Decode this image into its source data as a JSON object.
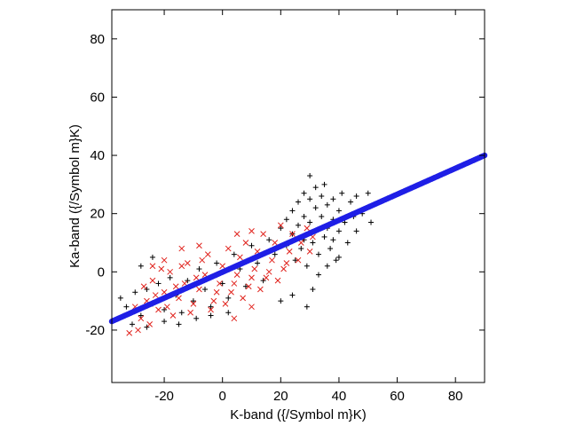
{
  "chart_data": {
    "type": "scatter",
    "xlabel": "K-band ({/Symbol m}K)",
    "ylabel": "Ka-band ({/Symbol m}K)",
    "xlim": [
      -38,
      90
    ],
    "ylim": [
      -38,
      90
    ],
    "xticks": [
      -20,
      0,
      20,
      40,
      60,
      80
    ],
    "yticks": [
      -20,
      0,
      20,
      40,
      60,
      80
    ],
    "xtick_labels": [
      "-20",
      "0",
      "20",
      "40",
      "60",
      "80"
    ],
    "ytick_labels": [
      "-20",
      "0",
      "20",
      "40",
      "60",
      "80"
    ],
    "grid": false,
    "legend": "none",
    "series": [
      {
        "marker": "plus",
        "color": "#000000",
        "points": [
          [
            -35,
            -9
          ],
          [
            -33,
            -12
          ],
          [
            -30,
            -7
          ],
          [
            -28,
            -15
          ],
          [
            -26,
            -6
          ],
          [
            -24,
            -11
          ],
          [
            -22,
            -4
          ],
          [
            -20,
            -13
          ],
          [
            -18,
            -2
          ],
          [
            -16,
            -8
          ],
          [
            -14,
            -14
          ],
          [
            -12,
            -3
          ],
          [
            -10,
            -10
          ],
          [
            -8,
            1
          ],
          [
            -6,
            -6
          ],
          [
            -4,
            -12
          ],
          [
            -2,
            3
          ],
          [
            0,
            -4
          ],
          [
            2,
            -9
          ],
          [
            4,
            6
          ],
          [
            6,
            1
          ],
          [
            8,
            -5
          ],
          [
            10,
            9
          ],
          [
            12,
            3
          ],
          [
            14,
            -3
          ],
          [
            16,
            11
          ],
          [
            18,
            6
          ],
          [
            20,
            15
          ],
          [
            22,
            18
          ],
          [
            22,
            9
          ],
          [
            24,
            21
          ],
          [
            24,
            13
          ],
          [
            25,
            4
          ],
          [
            26,
            24
          ],
          [
            26,
            16
          ],
          [
            27,
            8
          ],
          [
            28,
            27
          ],
          [
            28,
            19
          ],
          [
            28,
            11
          ],
          [
            29,
            2
          ],
          [
            30,
            33
          ],
          [
            30,
            25
          ],
          [
            30,
            17
          ],
          [
            31,
            10
          ],
          [
            32,
            29
          ],
          [
            32,
            22
          ],
          [
            32,
            14
          ],
          [
            33,
            6
          ],
          [
            34,
            26
          ],
          [
            34,
            19
          ],
          [
            35,
            12
          ],
          [
            35,
            30
          ],
          [
            36,
            23
          ],
          [
            36,
            15
          ],
          [
            37,
            8
          ],
          [
            38,
            25
          ],
          [
            38,
            18
          ],
          [
            38,
            11
          ],
          [
            39,
            4
          ],
          [
            40,
            21
          ],
          [
            40,
            14
          ],
          [
            41,
            27
          ],
          [
            42,
            17
          ],
          [
            43,
            10
          ],
          [
            44,
            24
          ],
          [
            45,
            19
          ],
          [
            46,
            26
          ],
          [
            46,
            14
          ],
          [
            48,
            20
          ],
          [
            50,
            27
          ],
          [
            51,
            17
          ],
          [
            29,
            -12
          ],
          [
            31,
            -6
          ],
          [
            33,
            -1
          ],
          [
            36,
            2
          ],
          [
            40,
            5
          ],
          [
            24,
            -8
          ],
          [
            20,
            -10
          ],
          [
            -28,
            2
          ],
          [
            -24,
            5
          ],
          [
            -31,
            -18
          ],
          [
            -26,
            -19
          ],
          [
            -20,
            -17
          ],
          [
            -15,
            -18
          ],
          [
            -9,
            -16
          ],
          [
            -4,
            -15
          ],
          [
            2,
            -14
          ]
        ]
      },
      {
        "marker": "cross",
        "color": "#e0201a",
        "points": [
          [
            -32,
            -21
          ],
          [
            -28,
            -16
          ],
          [
            -26,
            -10
          ],
          [
            -24,
            -3
          ],
          [
            -22,
            -13
          ],
          [
            -20,
            -7
          ],
          [
            -18,
            0
          ],
          [
            -17,
            -15
          ],
          [
            -15,
            -9
          ],
          [
            -13,
            -4
          ],
          [
            -12,
            3
          ],
          [
            -10,
            -11
          ],
          [
            -8,
            -6
          ],
          [
            -6,
            -1
          ],
          [
            -5,
            6
          ],
          [
            -3,
            -10
          ],
          [
            -1,
            -4
          ],
          [
            0,
            2
          ],
          [
            2,
            8
          ],
          [
            3,
            -7
          ],
          [
            5,
            -1
          ],
          [
            6,
            5
          ],
          [
            8,
            10
          ],
          [
            9,
            -5
          ],
          [
            11,
            1
          ],
          [
            12,
            7
          ],
          [
            14,
            13
          ],
          [
            15,
            -2
          ],
          [
            17,
            4
          ],
          [
            18,
            10
          ],
          [
            20,
            16
          ],
          [
            21,
            1
          ],
          [
            23,
            7
          ],
          [
            24,
            13
          ],
          [
            26,
            4
          ],
          [
            27,
            10
          ],
          [
            29,
            15
          ],
          [
            30,
            7
          ],
          [
            31,
            12
          ],
          [
            -30,
            -12
          ],
          [
            -27,
            -5
          ],
          [
            -25,
            -18
          ],
          [
            -23,
            -8
          ],
          [
            -21,
            1
          ],
          [
            -19,
            -12
          ],
          [
            -16,
            -5
          ],
          [
            -14,
            2
          ],
          [
            -11,
            -14
          ],
          [
            -9,
            -2
          ],
          [
            -7,
            4
          ],
          [
            -4,
            -13
          ],
          [
            -2,
            -7
          ],
          [
            1,
            -11
          ],
          [
            4,
            -4
          ],
          [
            7,
            -9
          ],
          [
            10,
            -2
          ],
          [
            13,
            -6
          ],
          [
            16,
            0
          ],
          [
            19,
            -3
          ],
          [
            22,
            3
          ],
          [
            4,
            -16
          ],
          [
            10,
            -12
          ],
          [
            -8,
            9
          ],
          [
            -14,
            8
          ],
          [
            -20,
            4
          ],
          [
            -24,
            2
          ],
          [
            -29,
            -20
          ],
          [
            5,
            13
          ],
          [
            10,
            14
          ]
        ]
      },
      {
        "marker": "dot",
        "color": "#1f1fe6",
        "name": "",
        "line": {
          "x": [
            -38,
            90
          ],
          "y": [
            -17,
            40
          ]
        }
      }
    ]
  }
}
